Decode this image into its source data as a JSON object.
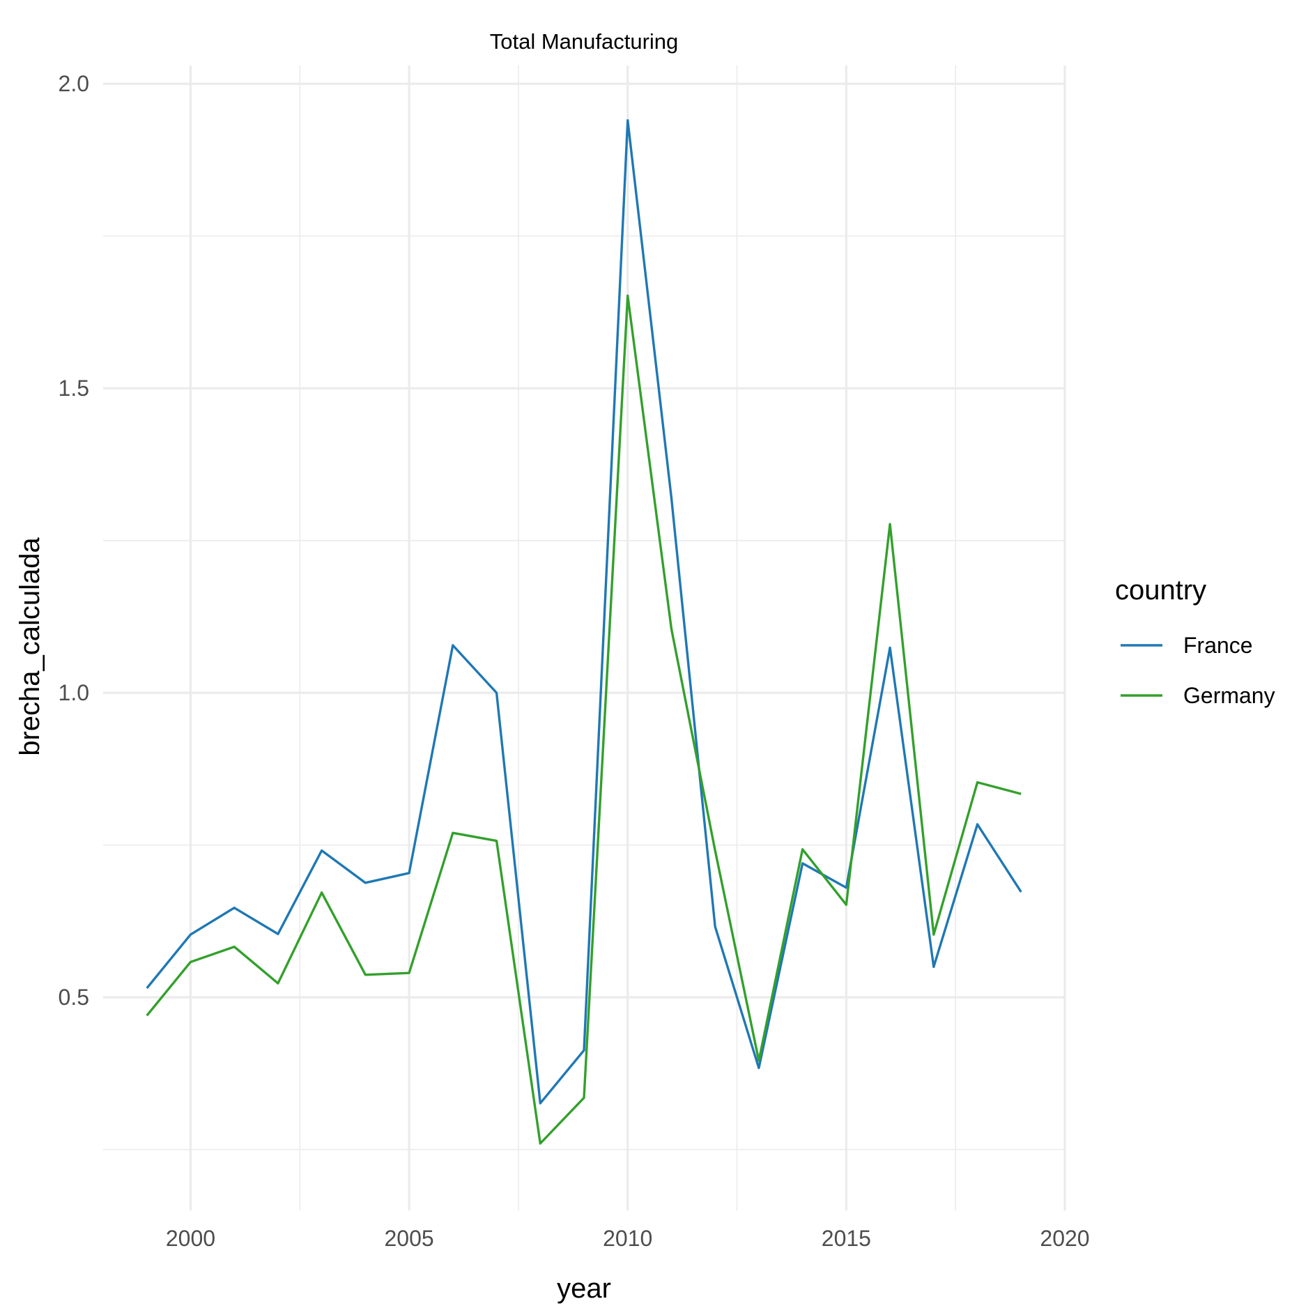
{
  "chart_data": {
    "type": "line",
    "title": "Total Manufacturing",
    "xlabel": "year",
    "ylabel": "brecha_calculada",
    "xlim": [
      1998,
      2020
    ],
    "ylim": [
      0.15,
      2.03
    ],
    "x_ticks": [
      2000,
      2005,
      2010,
      2015,
      2020
    ],
    "x_tick_labels": [
      "2000",
      "2005",
      "2010",
      "2015",
      "2020"
    ],
    "y_ticks": [
      0.5,
      1.0,
      1.5,
      2.0
    ],
    "y_tick_labels": [
      "0.5",
      "1.0",
      "1.5",
      "2.0"
    ],
    "grid": true,
    "legend": {
      "title": "country",
      "position": "right"
    },
    "x": [
      1999,
      2000,
      2001,
      2002,
      2003,
      2004,
      2005,
      2006,
      2007,
      2008,
      2009,
      2010,
      2011,
      2012,
      2013,
      2014,
      2015,
      2016,
      2017,
      2018,
      2019
    ],
    "series": [
      {
        "name": "France",
        "color": "#1f78b4",
        "values": [
          0.515,
          0.603,
          0.647,
          0.604,
          0.741,
          0.688,
          0.704,
          1.078,
          1.0,
          0.326,
          0.413,
          1.94,
          1.32,
          0.616,
          0.384,
          0.72,
          0.68,
          1.074,
          0.55,
          0.784,
          0.673
        ]
      },
      {
        "name": "Germany",
        "color": "#33a02c",
        "values": [
          0.47,
          0.558,
          0.583,
          0.523,
          0.672,
          0.537,
          0.54,
          0.77,
          0.757,
          0.26,
          0.335,
          1.652,
          1.105,
          0.741,
          0.396,
          0.743,
          0.652,
          1.277,
          0.603,
          0.853,
          0.834
        ]
      }
    ]
  }
}
